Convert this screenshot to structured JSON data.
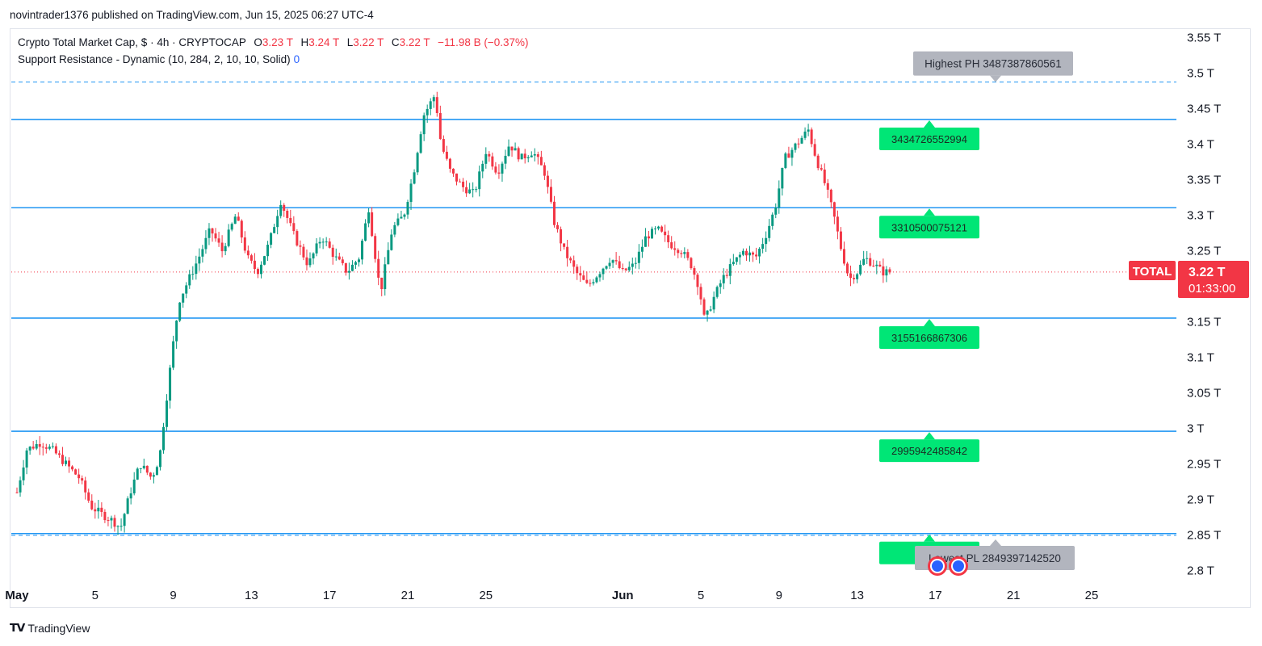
{
  "header": {
    "published": "novintrader1376 published on TradingView.com, Jun 15, 2025 06:27 UTC-4"
  },
  "legend": {
    "symbol": "Crypto Total Market Cap, $ · 4h · CRYPTOCAP",
    "o_label": "O",
    "o_value": "3.23 T",
    "h_label": "H",
    "h_value": "3.24 T",
    "l_label": "L",
    "l_value": "3.22 T",
    "c_label": "C",
    "c_value": "3.22 T",
    "change": "−11.98 B (−0.37%)",
    "indicator": "Support Resistance - Dynamic (10, 284, 2, 10, 10, Solid)",
    "indicator_value": "0"
  },
  "colors": {
    "up": "#089981",
    "down": "#f23645",
    "level_line": "#2196f3",
    "label_green": "#00e676",
    "label_gray": "#b2b5be",
    "price_tag": "#f23645"
  },
  "price_tag": {
    "symbol": "TOTAL",
    "price": "3.22 T",
    "countdown": "01:33:00"
  },
  "footer": {
    "brand": "TradingView"
  },
  "chart_data": {
    "type": "candlestick",
    "title": "Crypto Total Market Cap, $ · 4h · CRYPTOCAP",
    "y_unit": "T USD",
    "ylim": [
      2.77,
      3.57
    ],
    "y_ticks": [
      "3.55 T",
      "3.5 T",
      "3.45 T",
      "3.4 T",
      "3.35 T",
      "3.3 T",
      "3.25 T",
      "3.2 T",
      "3.15 T",
      "3.1 T",
      "3.05 T",
      "3 T",
      "2.95 T",
      "2.9 T",
      "2.85 T",
      "2.8 T"
    ],
    "x_ticks": [
      "May",
      "5",
      "9",
      "13",
      "17",
      "21",
      "25",
      "Jun",
      "5",
      "9",
      "13",
      "17",
      "21",
      "25"
    ],
    "x_ticks_day_index": [
      1,
      5,
      9,
      13,
      17,
      21,
      25,
      32,
      36,
      40,
      44,
      48,
      52,
      56
    ],
    "current_price": 3.22,
    "levels": [
      {
        "value": 3.434726552994,
        "label": "3434726552994",
        "style": "solid"
      },
      {
        "value": 3.310500075121,
        "label": "3310500075121",
        "style": "solid"
      },
      {
        "value": 3.155166867306,
        "label": "3155166867306",
        "style": "solid"
      },
      {
        "value": 2.995942485842,
        "label": "2995942485842",
        "style": "solid"
      },
      {
        "value": 2.852,
        "label": "2852",
        "style": "solid"
      }
    ],
    "extremes": [
      {
        "value": 3.487387860561,
        "label": "Highest PH 3487387860561"
      },
      {
        "value": 2.84939714252,
        "label": "Lowest PL 2849397142520"
      }
    ],
    "path_points": [
      [
        1.0,
        2.91
      ],
      [
        1.5,
        2.97
      ],
      [
        2.2,
        2.98
      ],
      [
        2.8,
        2.97
      ],
      [
        3.5,
        2.95
      ],
      [
        4.2,
        2.93
      ],
      [
        4.8,
        2.89
      ],
      [
        5.3,
        2.88
      ],
      [
        5.9,
        2.87
      ],
      [
        6.3,
        2.86
      ],
      [
        6.8,
        2.91
      ],
      [
        7.3,
        2.95
      ],
      [
        7.9,
        2.93
      ],
      [
        8.3,
        2.96
      ],
      [
        8.6,
        3.03
      ],
      [
        9.0,
        3.12
      ],
      [
        9.3,
        3.18
      ],
      [
        9.8,
        3.21
      ],
      [
        10.3,
        3.24
      ],
      [
        10.9,
        3.28
      ],
      [
        11.5,
        3.25
      ],
      [
        12.2,
        3.3
      ],
      [
        12.8,
        3.24
      ],
      [
        13.3,
        3.22
      ],
      [
        13.9,
        3.26
      ],
      [
        14.5,
        3.32
      ],
      [
        15.2,
        3.27
      ],
      [
        15.9,
        3.23
      ],
      [
        16.6,
        3.27
      ],
      [
        17.3,
        3.24
      ],
      [
        17.9,
        3.22
      ],
      [
        18.5,
        3.24
      ],
      [
        19.0,
        3.31
      ],
      [
        19.6,
        3.19
      ],
      [
        20.2,
        3.28
      ],
      [
        20.8,
        3.3
      ],
      [
        21.3,
        3.36
      ],
      [
        21.8,
        3.44
      ],
      [
        22.4,
        3.47
      ],
      [
        22.7,
        3.4
      ],
      [
        23.2,
        3.36
      ],
      [
        23.8,
        3.34
      ],
      [
        24.4,
        3.33
      ],
      [
        25.0,
        3.39
      ],
      [
        25.6,
        3.36
      ],
      [
        26.2,
        3.4
      ],
      [
        26.8,
        3.38
      ],
      [
        27.4,
        3.39
      ],
      [
        28.0,
        3.36
      ],
      [
        28.5,
        3.29
      ],
      [
        29.0,
        3.25
      ],
      [
        29.6,
        3.22
      ],
      [
        30.2,
        3.2
      ],
      [
        30.8,
        3.22
      ],
      [
        31.4,
        3.24
      ],
      [
        32.0,
        3.22
      ],
      [
        32.6,
        3.23
      ],
      [
        33.2,
        3.27
      ],
      [
        33.8,
        3.28
      ],
      [
        34.4,
        3.26
      ],
      [
        35.0,
        3.25
      ],
      [
        35.5,
        3.23
      ],
      [
        35.9,
        3.2
      ],
      [
        36.2,
        3.15
      ],
      [
        36.6,
        3.18
      ],
      [
        37.1,
        3.21
      ],
      [
        37.6,
        3.23
      ],
      [
        38.2,
        3.25
      ],
      [
        38.8,
        3.24
      ],
      [
        39.3,
        3.27
      ],
      [
        39.8,
        3.31
      ],
      [
        40.3,
        3.38
      ],
      [
        40.9,
        3.4
      ],
      [
        41.5,
        3.42
      ],
      [
        41.9,
        3.38
      ],
      [
        42.4,
        3.34
      ],
      [
        42.8,
        3.3
      ],
      [
        43.2,
        3.25
      ],
      [
        43.6,
        3.21
      ],
      [
        44.0,
        3.22
      ],
      [
        44.4,
        3.24
      ],
      [
        44.9,
        3.23
      ],
      [
        45.3,
        3.22
      ],
      [
        45.8,
        3.22
      ]
    ]
  }
}
